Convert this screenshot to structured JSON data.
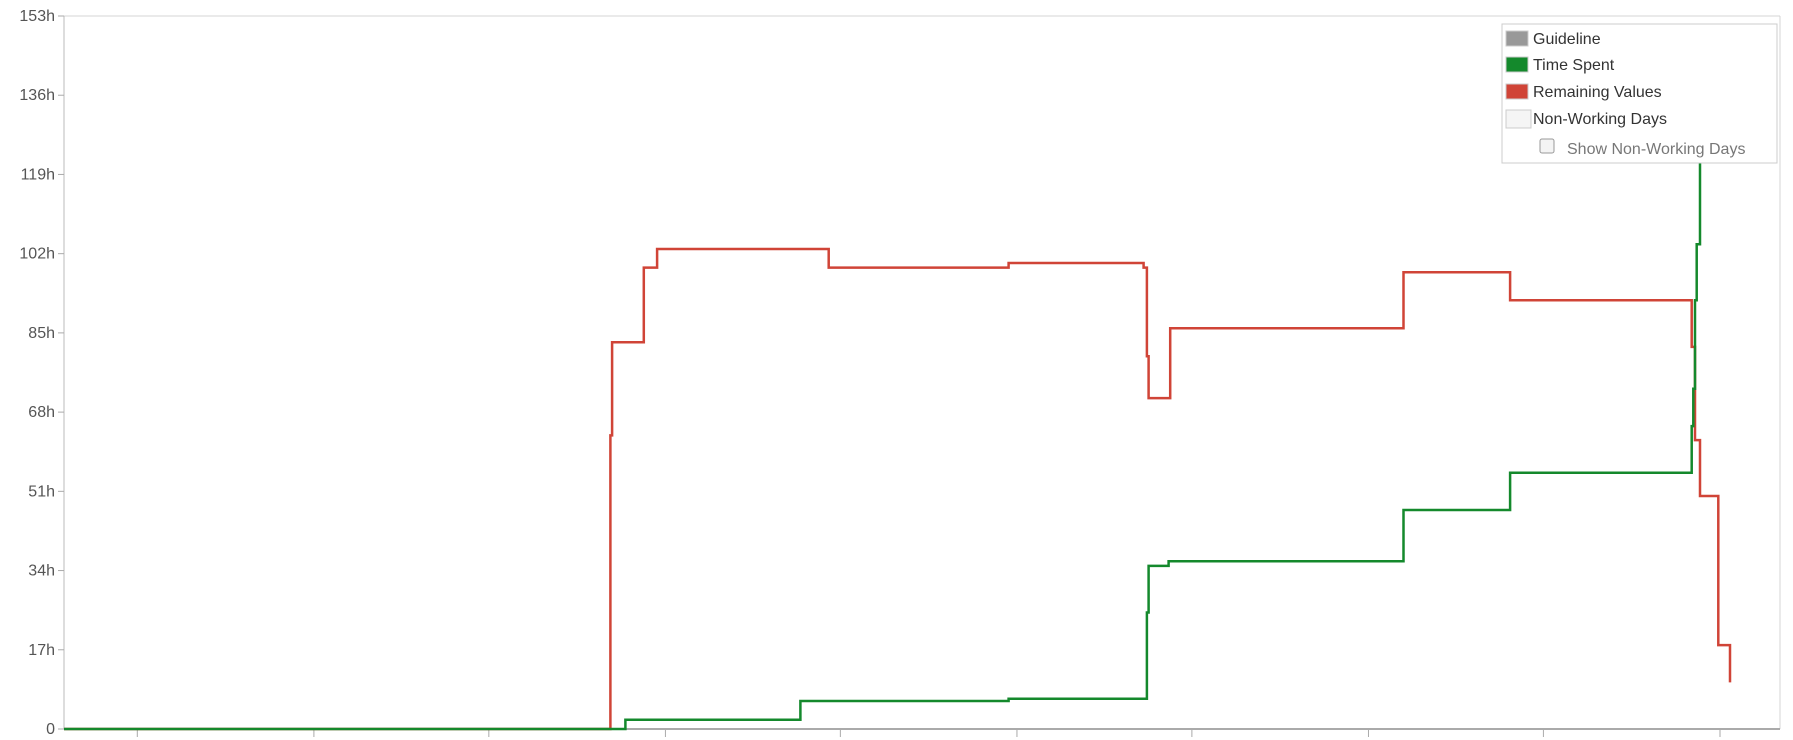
{
  "chart_data": {
    "type": "line",
    "step": true,
    "y_unit": "h",
    "ylim": [
      0,
      153
    ],
    "xlim": [
      0,
      100
    ],
    "y_ticks": [
      {
        "value": 0,
        "label": "0"
      },
      {
        "value": 17,
        "label": "17h"
      },
      {
        "value": 34,
        "label": "34h"
      },
      {
        "value": 51,
        "label": "51h"
      },
      {
        "value": 68,
        "label": "68h"
      },
      {
        "value": 85,
        "label": "85h"
      },
      {
        "value": 102,
        "label": "102h"
      },
      {
        "value": 119,
        "label": "119h"
      },
      {
        "value": 136,
        "label": "136h"
      },
      {
        "value": 153,
        "label": "153h"
      }
    ],
    "x_ticks": [
      4.4,
      15.0,
      25.5,
      36.1,
      46.6,
      57.2,
      67.7,
      78.3,
      88.8,
      99.4
    ],
    "grid": false,
    "legend_position": "top-right",
    "legend": [
      {
        "label": "Guideline",
        "color": "#999999"
      },
      {
        "label": "Time Spent",
        "color": "#14892c"
      },
      {
        "label": "Remaining Values",
        "color": "#d04437"
      },
      {
        "label": "Non-Working Days",
        "color": "#f5f5f5"
      }
    ],
    "show_non_working_days": {
      "label": "Show Non-Working Days",
      "checked": false
    },
    "series": [
      {
        "legend": "Remaining Values",
        "color": "#d04437",
        "x": [
          0,
          32.6,
          32.8,
          32.9,
          33.7,
          34.8,
          35.6,
          44.2,
          45.9,
          56.7,
          64.8,
          65.0,
          65.1,
          66.3,
          66.4,
          79.8,
          80.4,
          86.8,
          97.7,
          97.8,
          97.9,
          98.2,
          99.3,
          100.0
        ],
        "y": [
          0,
          0,
          63,
          83,
          83,
          99,
          103,
          103,
          99,
          100,
          99,
          80,
          71,
          71,
          86,
          86,
          98,
          92,
          82,
          82,
          62,
          50,
          18,
          10
        ]
      },
      {
        "legend": "Time Spent",
        "color": "#14892c",
        "x": [
          0,
          32.6,
          33.7,
          44.2,
          44.2,
          56.7,
          64.8,
          65.0,
          65.1,
          66.3,
          79.8,
          80.4,
          86.8,
          97.7,
          97.8,
          97.9,
          98.0,
          98.2
        ],
        "y": [
          0,
          0,
          2,
          2,
          6,
          6.5,
          6.5,
          25,
          35,
          36,
          36,
          47,
          55,
          65,
          73,
          92,
          104,
          134
        ]
      }
    ]
  }
}
